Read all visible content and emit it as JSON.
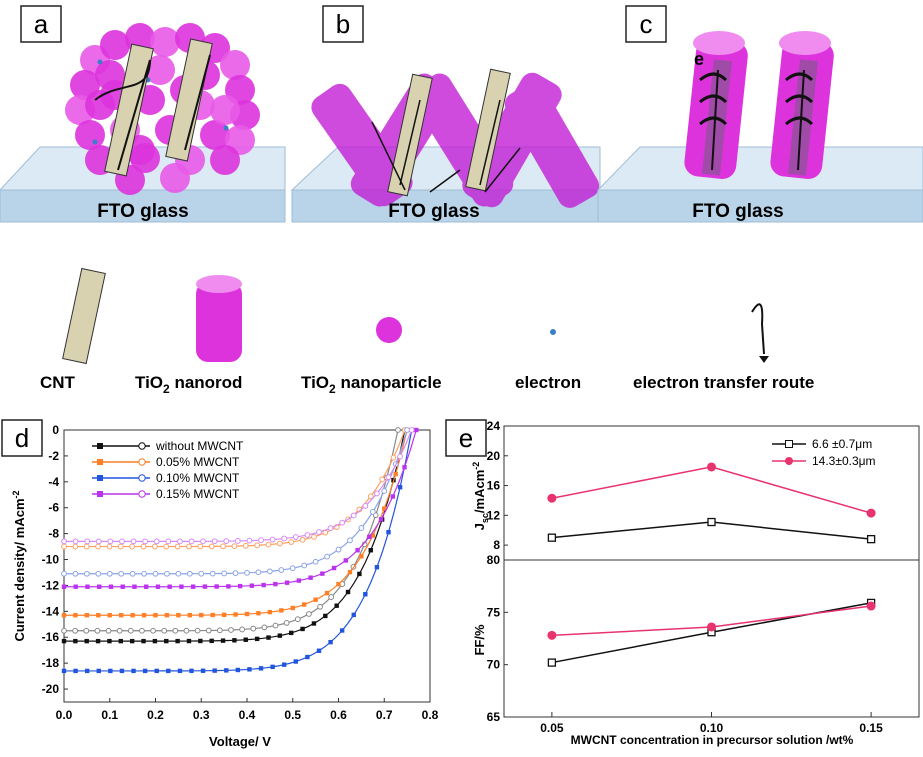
{
  "panels": {
    "a": {
      "label": "a",
      "substrate": "FTO glass"
    },
    "b": {
      "label": "b",
      "substrate": "FTO glass"
    },
    "c": {
      "label": "c",
      "substrate": "FTO glass",
      "electron_label": "e"
    },
    "d": {
      "label": "d"
    },
    "e": {
      "label": "e"
    }
  },
  "legend": {
    "cnt": "CNT",
    "nanorod": "TiO",
    "nanorod_sub": "2",
    "nanorod_suffix": " nanorod",
    "nanoparticle": "TiO",
    "nanoparticle_sub": "2",
    "nanoparticle_suffix": " nanoparticle",
    "electron": "electron",
    "route": "electron transfer route"
  },
  "colors": {
    "magenta": "#dd33dd",
    "magenta_light": "#f08cf0",
    "glass_top": "#dceaf5",
    "glass_side": "#b9d4e8",
    "electron_blue": "#3a7fc8",
    "black_series": "#111111",
    "orange_series": "#ff7f27",
    "blue_series": "#2255dd",
    "violet_series": "#bb33ee",
    "pink_series": "#e8336e"
  },
  "chart_data": [
    {
      "type": "line",
      "xlabel": "Voltage/ V",
      "ylabel": "Current density/ mAcm",
      "ylabel_sup": "-2",
      "xlim": [
        0.0,
        0.8
      ],
      "ylim": [
        -21,
        0
      ],
      "x_ticks": [
        "0.0",
        "0.1",
        "0.2",
        "0.3",
        "0.4",
        "0.5",
        "0.6",
        "0.7",
        "0.8"
      ],
      "y_ticks": [
        "0",
        "-2",
        "-4",
        "-6",
        "-8",
        "-10",
        "-12",
        "-14",
        "-16",
        "-18",
        "-20"
      ],
      "legend": [
        {
          "name": "without MWCNT",
          "color": "#111111"
        },
        {
          "name": "0.05%  MWCNT",
          "color": "#ff7f27"
        },
        {
          "name": "0.10%  MWCNT",
          "color": "#2255dd"
        },
        {
          "name": "0.15%  MWCNT",
          "color": "#bb33ee"
        }
      ],
      "series": [
        {
          "name": "without MWCNT (filled)",
          "color": "#111111",
          "jsc": -16.3,
          "voc": 0.745,
          "filled": true
        },
        {
          "name": "without MWCNT (open)",
          "color": "#888888",
          "jsc": -15.5,
          "voc": 0.73,
          "filled": false
        },
        {
          "name": "0.05% MWCNT (filled)",
          "color": "#ff7f27",
          "jsc": -14.3,
          "voc": 0.75,
          "filled": true
        },
        {
          "name": "0.05% MWCNT (open)",
          "color": "#ffa060",
          "jsc": -9.0,
          "voc": 0.745,
          "filled": false
        },
        {
          "name": "0.10% MWCNT (filled)",
          "color": "#2255dd",
          "jsc": -18.6,
          "voc": 0.76,
          "filled": true
        },
        {
          "name": "0.10% MWCNT (open)",
          "color": "#8aa4e8",
          "jsc": -11.1,
          "voc": 0.75,
          "filled": false
        },
        {
          "name": "0.15% MWCNT (filled)",
          "color": "#bb33ee",
          "jsc": -12.1,
          "voc": 0.77,
          "filled": true
        },
        {
          "name": "0.15% MWCNT (open)",
          "color": "#d68af5",
          "jsc": -8.6,
          "voc": 0.76,
          "filled": false
        }
      ]
    },
    {
      "type": "line",
      "xlabel": "MWCNT concentration in precursor solution /wt%",
      "categories": [
        "0.05",
        "0.10",
        "0.15"
      ],
      "x": [
        0.05,
        0.1,
        0.15
      ],
      "top": {
        "ylabel": "J",
        "ylabel_sub": "sc",
        "ylabel_suffix": "/mAcm",
        "ylabel_sup": "-2",
        "ylim": [
          6,
          24
        ],
        "y_ticks": [
          "8",
          "12",
          "16",
          "20",
          "24"
        ],
        "series": [
          {
            "name": "6.6 ±0.7μm",
            "color": "#111111",
            "marker": "open-square",
            "values": [
              9.0,
              11.1,
              8.8
            ]
          },
          {
            "name": "14.3±0.3μm",
            "color": "#e8336e",
            "marker": "filled-circle",
            "values": [
              14.3,
              18.5,
              12.3
            ]
          }
        ]
      },
      "bottom": {
        "ylabel": "FF/%",
        "ylim": [
          65,
          80
        ],
        "y_ticks": [
          "65",
          "70",
          "75",
          "80"
        ],
        "series": [
          {
            "name": "6.6 ±0.7μm",
            "color": "#111111",
            "marker": "open-square",
            "values": [
              70.2,
              73.1,
              75.9
            ]
          },
          {
            "name": "14.3±0.3μm",
            "color": "#e8336e",
            "marker": "filled-circle",
            "values": [
              72.8,
              73.6,
              75.6
            ]
          }
        ]
      }
    }
  ]
}
